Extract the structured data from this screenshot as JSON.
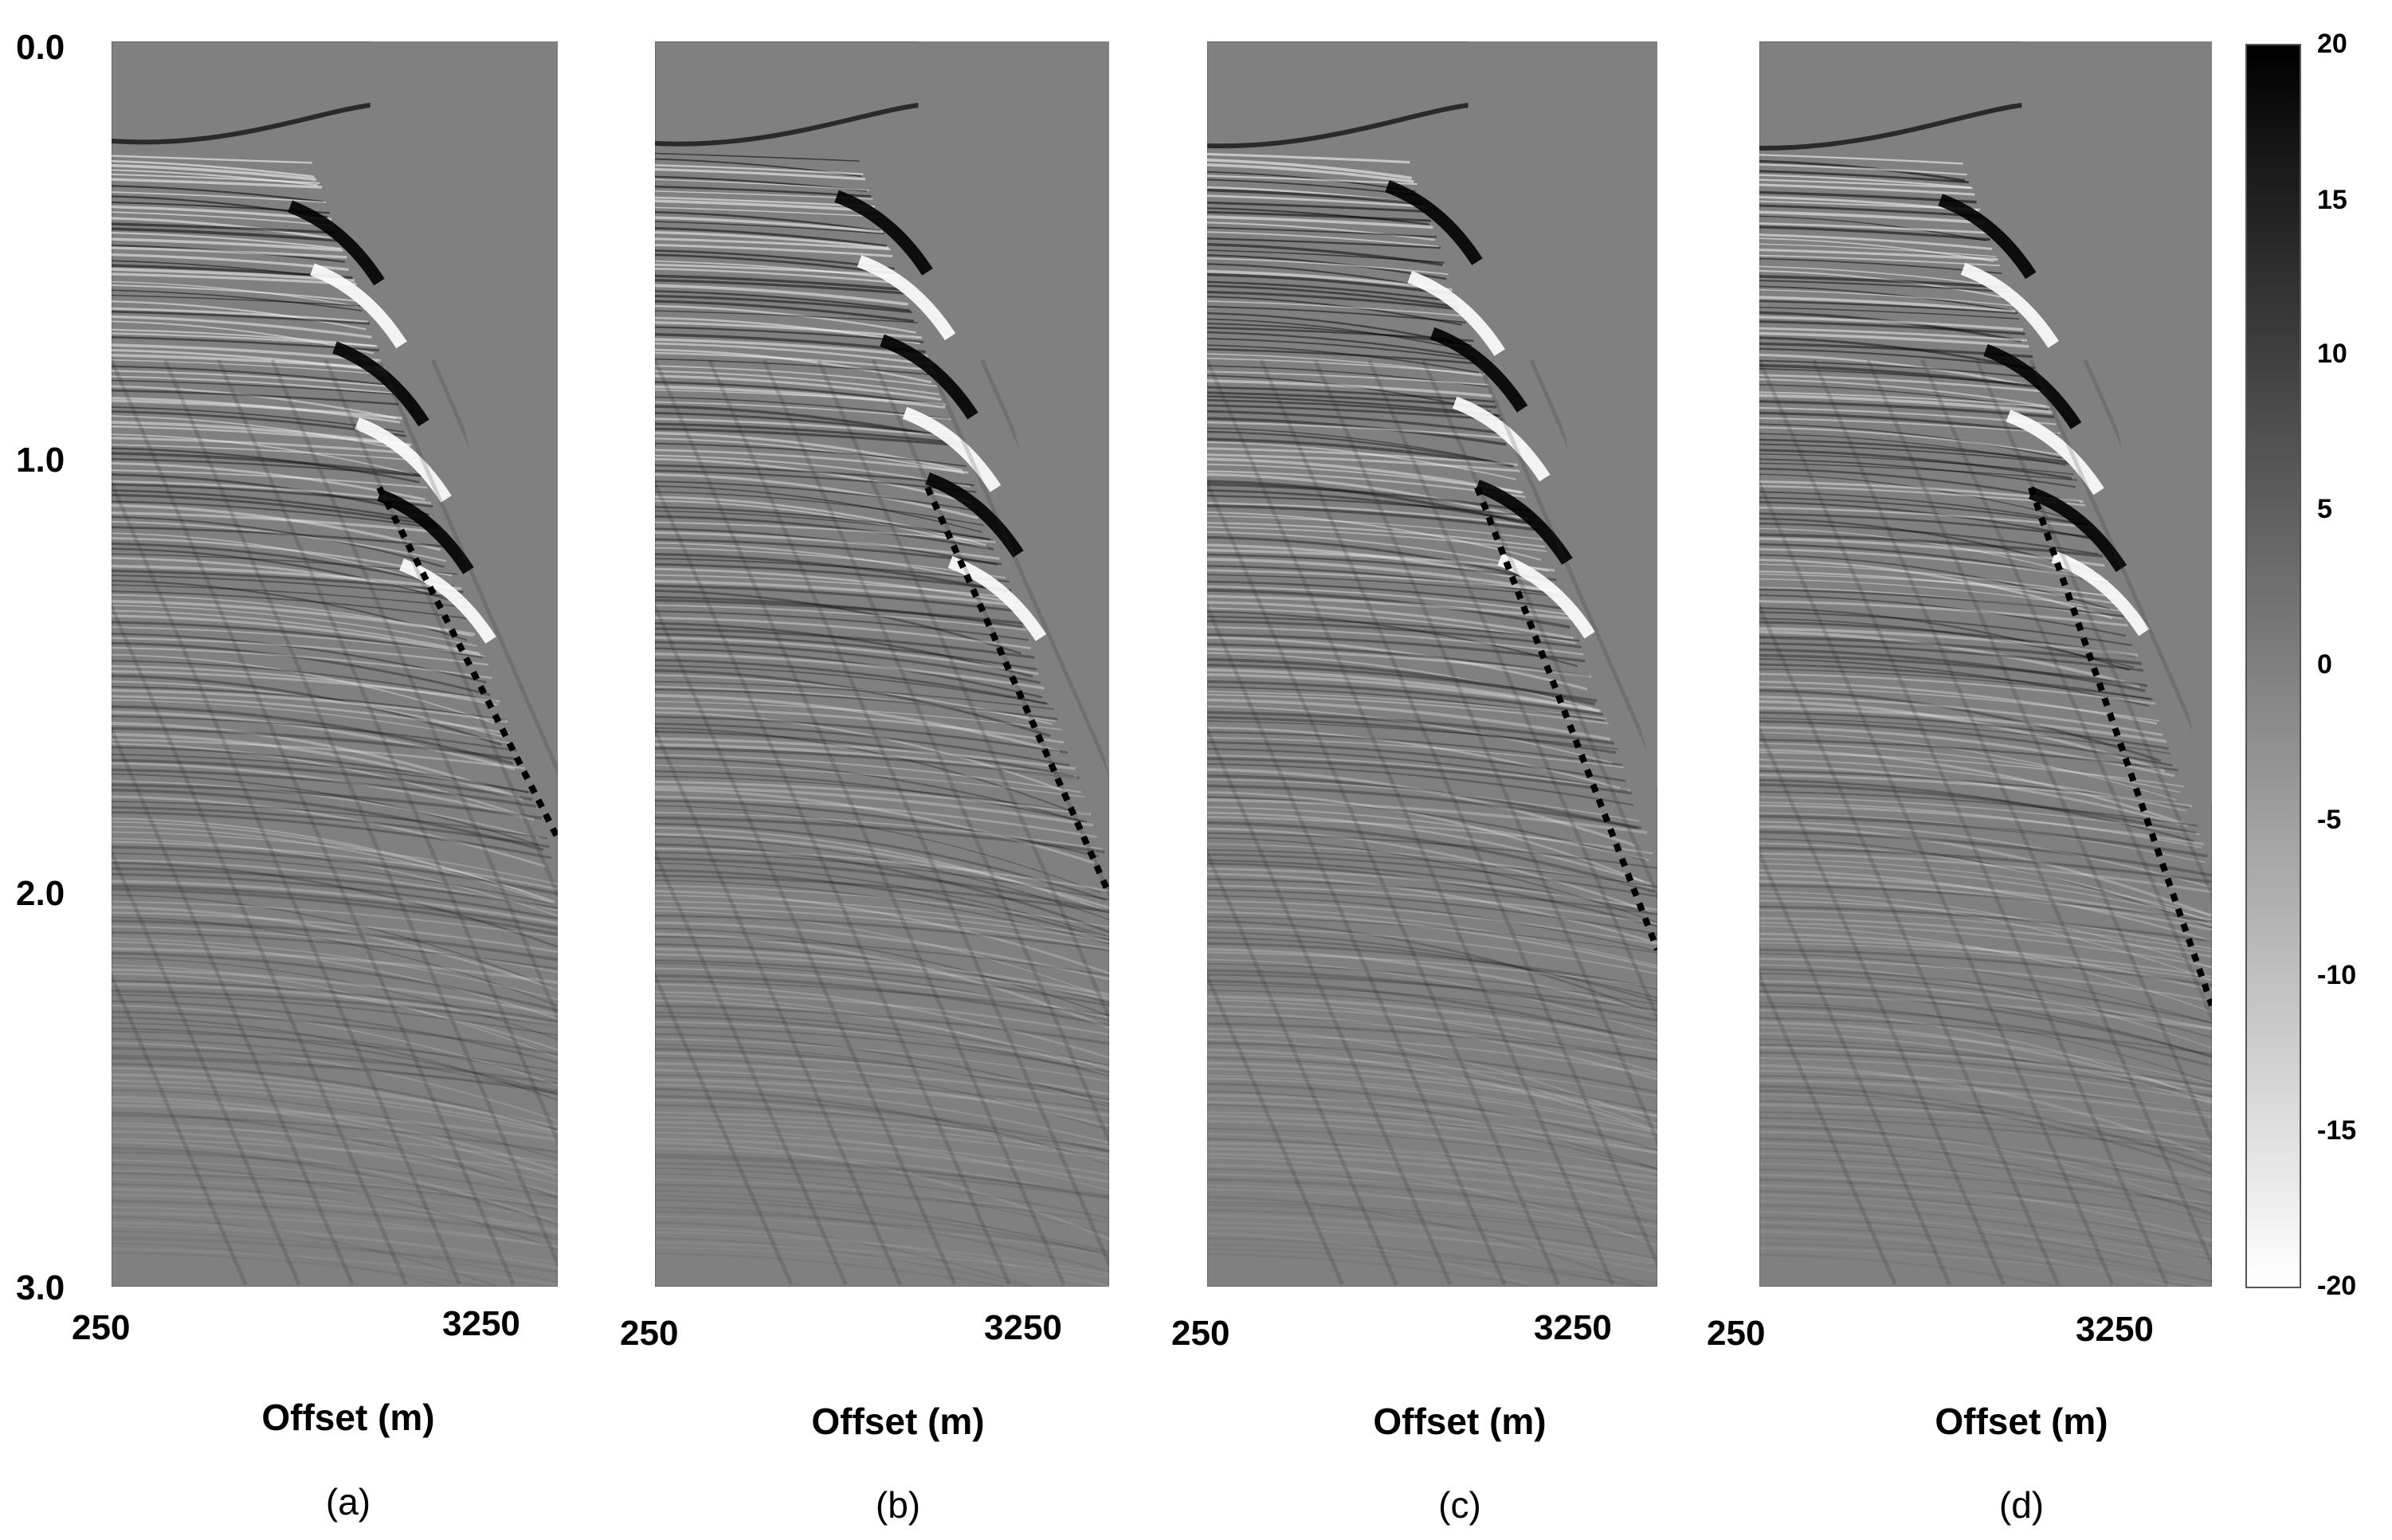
{
  "figure": {
    "y_ticks": [
      "0.0",
      "1.0",
      "2.0",
      "3.0"
    ],
    "x_tick_start": "250",
    "x_tick_end": "3250",
    "x_axis_label": "Offset (m)",
    "panels": [
      {
        "id": "a",
        "label": "(a)"
      },
      {
        "id": "b",
        "label": "(b)"
      },
      {
        "id": "c",
        "label": "(c)"
      },
      {
        "id": "d",
        "label": "(d)"
      }
    ],
    "colorbar": {
      "ticks": [
        "20",
        "15",
        "10",
        "5",
        "0",
        "-5",
        "-10",
        "-15",
        "-20"
      ],
      "colors": {
        "top": "#000000",
        "bottom": "#ffffff",
        "background": "#808080"
      }
    }
  }
}
